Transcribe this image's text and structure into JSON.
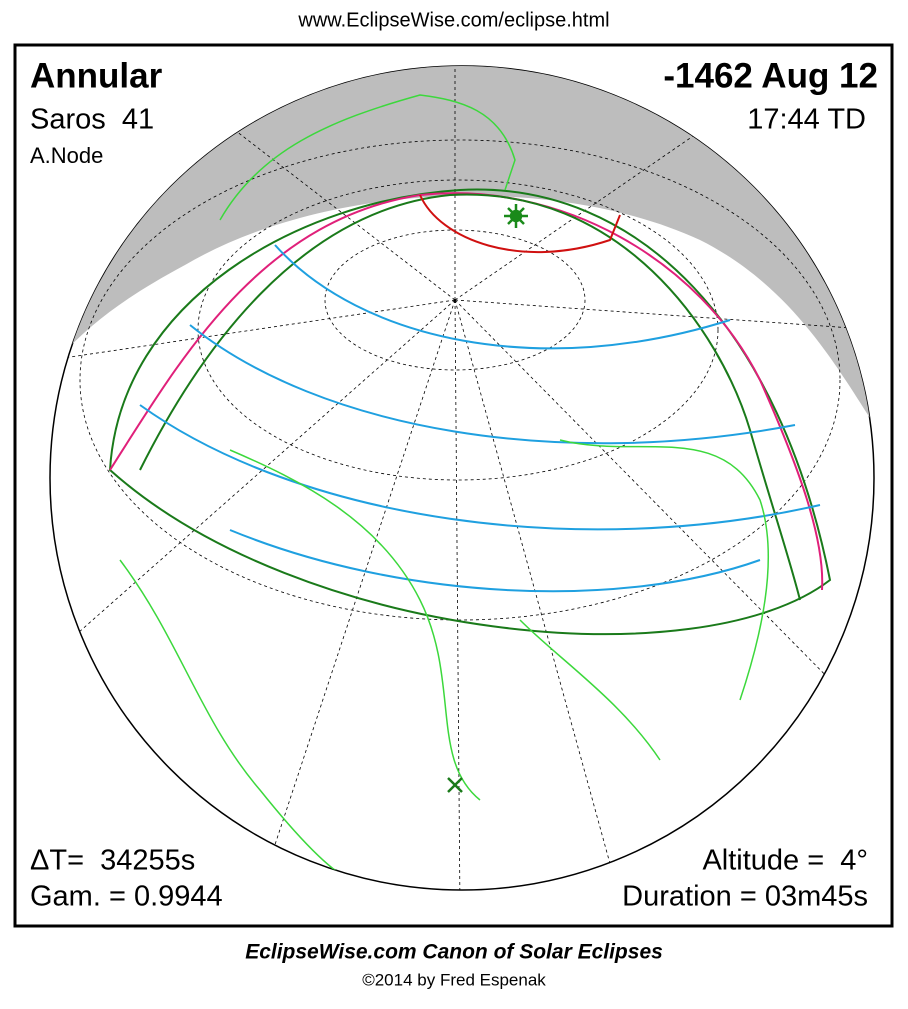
{
  "header": {
    "url": "www.EclipseWise.com/eclipse.html"
  },
  "map": {
    "top_left": {
      "type": "Annular",
      "saros": "Saros  41",
      "node": "A.Node"
    },
    "top_right": {
      "date": "-1462 Aug 12",
      "time": "17:44 TD"
    },
    "bottom_left": {
      "delta_t": "ΔT=  34255s",
      "gamma": "Gam. = 0.9944"
    },
    "bottom_right": {
      "altitude": "Altitude =  4°",
      "duration": "Duration = 03m45s"
    }
  },
  "footer": {
    "title": "EclipseWise.com Canon of Solar Eclipses",
    "credit": "©2014 by Fred Espenak"
  }
}
